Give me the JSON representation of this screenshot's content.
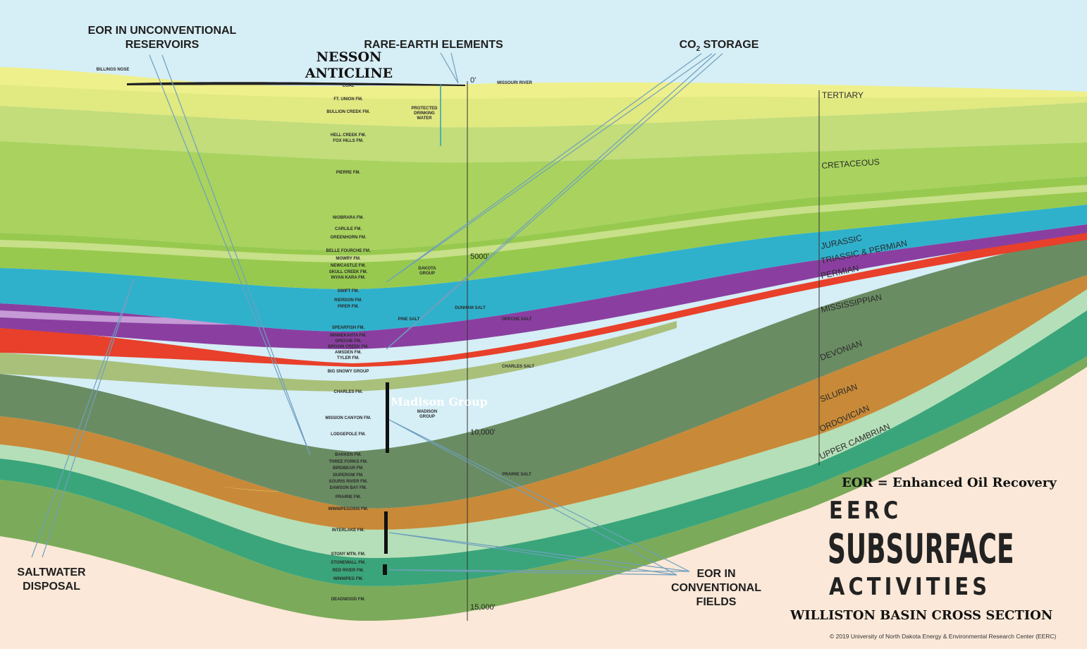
{
  "title": {
    "top": "EERC",
    "main": "SUBSURFACE",
    "bottom": "ACTIVITIES",
    "subtitle": "WILLISTON BASIN CROSS SECTION"
  },
  "legend_note": "EOR = Enhanced Oil Recovery",
  "copyright": "© 2019 University of North Dakota Energy & Environmental Research Center (EERC)",
  "anticline": {
    "line1": "NESSON",
    "line2": "ANTICLINE",
    "nose": "BILLINGS NOSE"
  },
  "madison": "Madison Group",
  "callouts": {
    "eor_unconventional": [
      "EOR IN UNCONVENTIONAL",
      "RESERVOIRS"
    ],
    "rare_earth": "RARE-EARTH ELEMENTS",
    "co2_storage": {
      "prefix": "CO",
      "sub": "2",
      "suffix": " STORAGE"
    },
    "saltwater": [
      "SALTWATER",
      "DISPOSAL"
    ],
    "eor_conventional": [
      "EOR IN",
      "CONVENTIONAL",
      "FIELDS"
    ]
  },
  "depths": [
    "0'",
    "5000'",
    "10,000'",
    "15,000'"
  ],
  "eras": [
    "TERTIARY",
    "CRETACEOUS",
    "JURASSIC",
    "TRIASSIC & PERMIAN",
    "PERMIAN",
    "MISSISSIPPIAN",
    "DEVONIAN",
    "SILURIAN",
    "ORDOVICIAN",
    "UPPER CAMBRIAN"
  ],
  "side_labels": {
    "missouri_river": "MISSOURI RIVER",
    "coal": "COAL",
    "protected_water": [
      "PROTECTED",
      "DRINKING",
      "WATER"
    ],
    "dakota_group": [
      "DAKOTA",
      "GROUP"
    ],
    "madison_group_small": [
      "MADISON",
      "GROUP"
    ],
    "dunham_salt": "DUNHAM SALT",
    "pine_salt": "PINE SALT",
    "opeche_salt": "OPECHE SALT",
    "charles_salt": "CHARLES SALT",
    "prairie_salt": "PRAIRIE SALT"
  },
  "formations": [
    "FT. UNION FM.",
    "BULLION CREEK FM.",
    "HELL CREEK FM.",
    "FOX HILLS FM.",
    "PIERRE FM.",
    "NIOBRARA FM.",
    "CARLILE FM.",
    "GREENHORN FM.",
    "BELLE FOURCHE FM.",
    "MOWRY FM.",
    "NEWCASTLE FM.",
    "SKULL CREEK FM.",
    "INYAN KARA FM.",
    "SWIFT FM.",
    "RIERDON FM.",
    "PIPER FM.",
    "SPEARFISH FM.",
    "MINNEKAHTA FM.",
    "OPECHE FM.",
    "BROOM CREEK FM.",
    "AMSDEN FM.",
    "TYLER FM.",
    "BIG SNOWY GROUP",
    "CHARLES FM.",
    "MISSION CANYON FM.",
    "LODGEPOLE FM.",
    "BAKKEN FM.",
    "THREE FORKS FM.",
    "BIRDBEAR FM.",
    "DUPEROW FM.",
    "SOURIS RIVER FM.",
    "DAWSON BAY FM.",
    "PRAIRIE FM.",
    "WINNIPEGOSIS FM.",
    "INTERLAKE FM.",
    "STONY MTN. FM.",
    "STONEWALL FM.",
    "RED RIVER FM.",
    "WINNIPEG FM.",
    "DEADWOOD FM."
  ],
  "colors": {
    "sky": "#d6eef6",
    "basement": "#fbe8d8",
    "tertiary": "#eef08c",
    "cretaceous": "#a9d35e",
    "jurassic": "#2fb1cc",
    "triassic": "#8a3fa0",
    "permian": "#e8402a",
    "mississippian": "#6a8c63",
    "devonian": "#c88a38",
    "salt": "#f2cc6a",
    "silurian": "#b5dfb8",
    "ordovician": "#3aa57a",
    "cambrian": "#7bab5a"
  }
}
